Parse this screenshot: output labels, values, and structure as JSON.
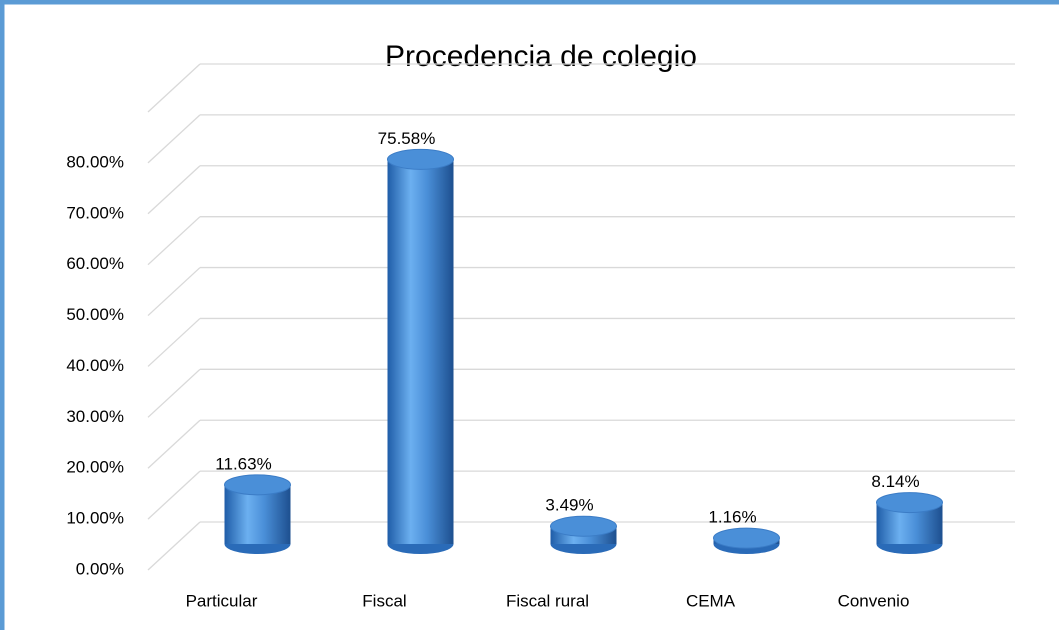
{
  "chart_data": {
    "type": "bar",
    "title": "Procedencia de colegio",
    "categories": [
      "Particular",
      "Fiscal",
      "Fiscal rural",
      "CEMA",
      "Convenio"
    ],
    "values": [
      11.63,
      75.58,
      3.49,
      1.16,
      8.14
    ],
    "value_labels": [
      "11.63%",
      "75.58%",
      "3.49%",
      "1.16%",
      "8.14%"
    ],
    "color": "#4a8fd8",
    "ylim": [
      0,
      90
    ],
    "yticks": [
      {
        "value": 0,
        "label": "0.00%"
      },
      {
        "value": 10,
        "label": "10.00%"
      },
      {
        "value": 20,
        "label": "20.00%"
      },
      {
        "value": 30,
        "label": "30.00%"
      },
      {
        "value": 40,
        "label": "40.00%"
      },
      {
        "value": 50,
        "label": "50.00%"
      },
      {
        "value": 60,
        "label": "60.00%"
      },
      {
        "value": 70,
        "label": "70.00%"
      },
      {
        "value": 80,
        "label": "80.00%"
      }
    ],
    "grid": true
  }
}
